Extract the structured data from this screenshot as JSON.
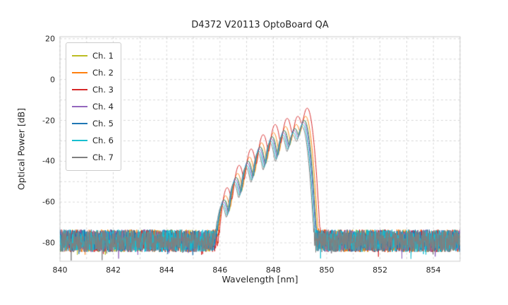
{
  "chart_data": {
    "type": "line",
    "title": "D4372 V20113 OptoBoard QA",
    "xlabel": "Wavelength [nm]",
    "ylabel": "Optical Power [dB]",
    "xlim": [
      840,
      855
    ],
    "ylim": [
      -89,
      21
    ],
    "xticks": [
      840,
      842,
      844,
      846,
      848,
      850,
      852,
      854
    ],
    "yticks": [
      20,
      0,
      -20,
      -40,
      -60,
      -80
    ],
    "grid": {
      "x_step": 1,
      "y_step": 10,
      "color": "#cfcfcf",
      "dash": [
        3,
        3
      ]
    },
    "frame_color": "#cccccc",
    "legend_position": "upper left",
    "series": [
      {
        "name": "Ch. 1",
        "color": "#bcbd22",
        "dx": 0.02,
        "gain": 1
      },
      {
        "name": "Ch. 2",
        "color": "#ff7f0e",
        "dx": 0.06,
        "gain": 3
      },
      {
        "name": "Ch. 3",
        "color": "#d62728",
        "dx": 0.12,
        "gain": 7
      },
      {
        "name": "Ch. 4",
        "color": "#9467bd",
        "dx": -0.02,
        "gain": 0
      },
      {
        "name": "Ch. 5",
        "color": "#1f77b4",
        "dx": 0.0,
        "gain": 1
      },
      {
        "name": "Ch. 6",
        "color": "#17becf",
        "dx": -0.05,
        "gain": -1
      },
      {
        "name": "Ch. 7",
        "color": "#7f7f7f",
        "dx": -0.08,
        "gain": -2
      }
    ],
    "spectrum": {
      "modes_nm": [
        846.15,
        846.6,
        847.05,
        847.5,
        847.95,
        848.4,
        848.8,
        849.15
      ],
      "modes_peak_db": [
        -60,
        -49,
        -41,
        -34,
        -29,
        -26,
        -25,
        -21
      ],
      "mode_sigma_nm": 0.09,
      "noise_floor_db": -79,
      "noise_spread_db": 11,
      "deep_spike_nm": 845.85,
      "deep_spike_db": -95,
      "sample_step_nm": 0.01
    }
  }
}
